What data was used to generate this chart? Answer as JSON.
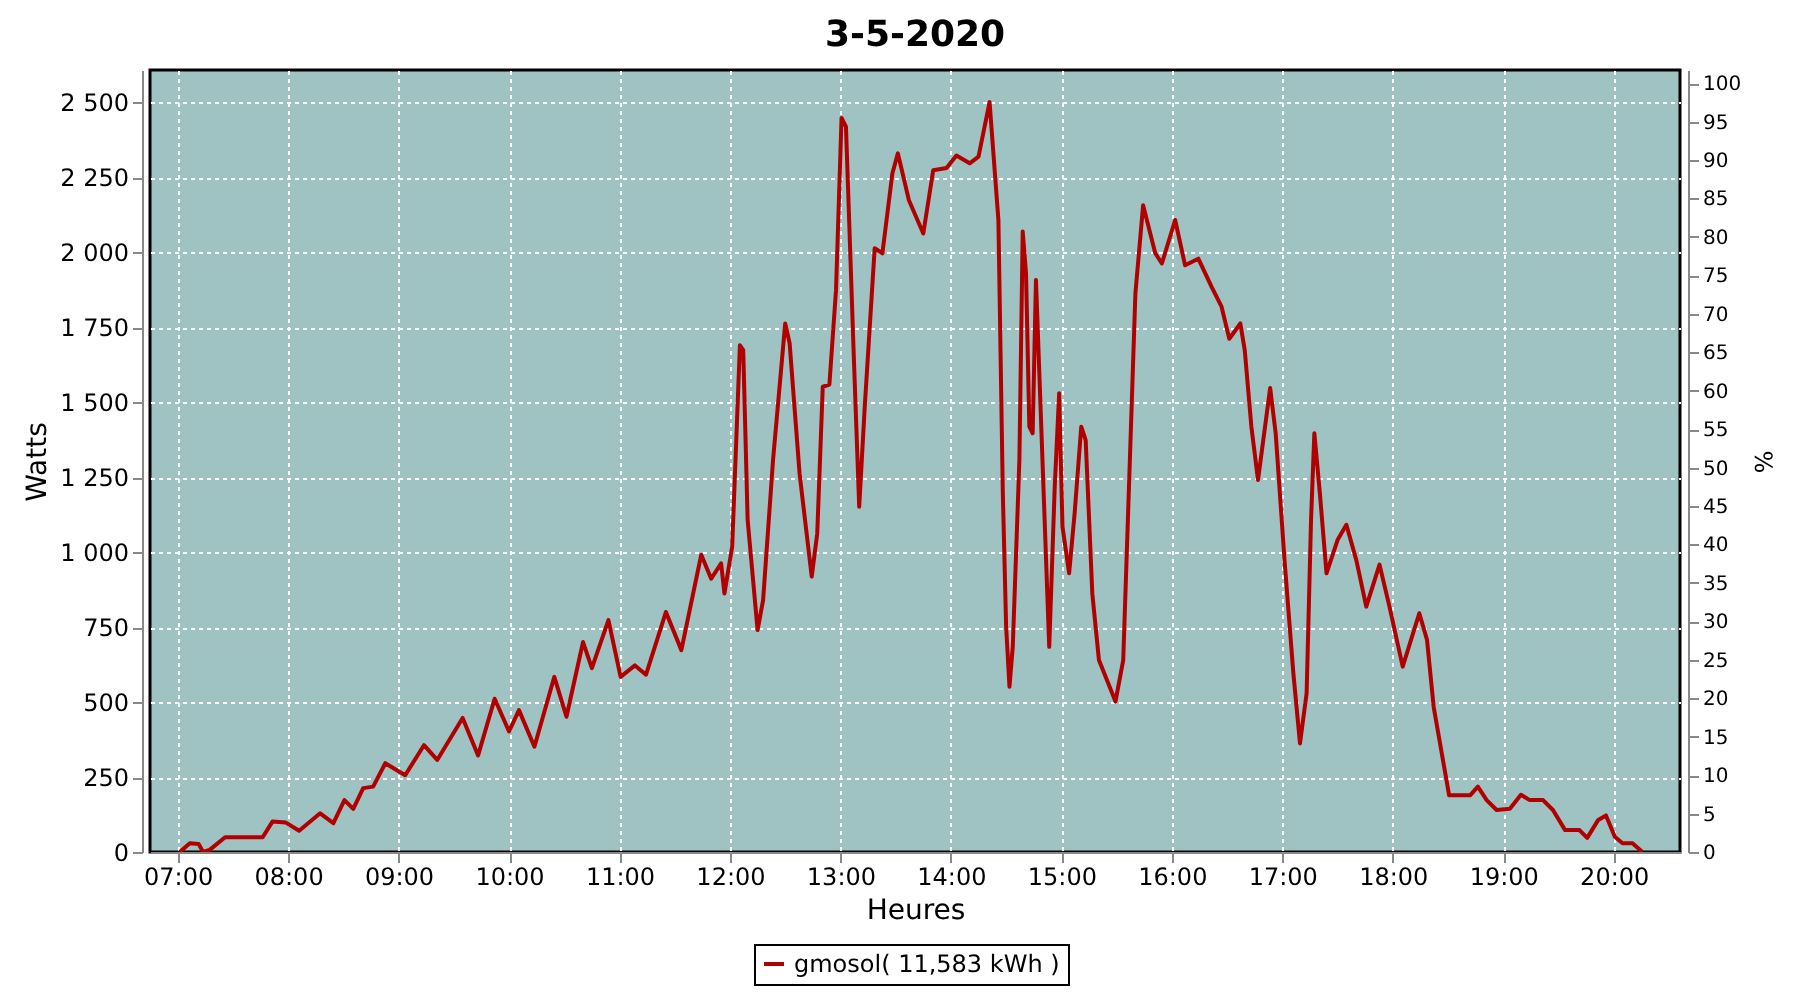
{
  "chart_data": {
    "type": "line",
    "title": "3-5-2020",
    "xlabel": "Heures",
    "ylabel": "Watts",
    "y2label": "%",
    "x": [
      7.02,
      7.11,
      7.19,
      7.23,
      7.29,
      7.43,
      7.77,
      7.86,
      7.98,
      8.1,
      8.29,
      8.41,
      8.51,
      8.59,
      8.68,
      8.77,
      8.88,
      9.06,
      9.23,
      9.35,
      9.58,
      9.72,
      9.87,
      10.0,
      10.09,
      10.23,
      10.41,
      10.52,
      10.67,
      10.75,
      10.9,
      11.01,
      11.14,
      11.24,
      11.42,
      11.56,
      11.74,
      11.83,
      11.92,
      11.95,
      12.02,
      12.09,
      12.12,
      12.16,
      12.25,
      12.3,
      12.39,
      12.5,
      12.54,
      12.63,
      12.74,
      12.79,
      12.84,
      12.9,
      12.96,
      13.01,
      13.05,
      13.12,
      13.17,
      13.22,
      13.31,
      13.38,
      13.47,
      13.52,
      13.62,
      13.75,
      13.84,
      13.96,
      14.05,
      14.17,
      14.25,
      14.35,
      14.43,
      14.47,
      14.5,
      14.53,
      14.56,
      14.62,
      14.65,
      14.68,
      14.71,
      14.74,
      14.77,
      14.89,
      14.94,
      14.98,
      15.01,
      15.07,
      15.12,
      15.18,
      15.22,
      15.28,
      15.34,
      15.49,
      15.56,
      15.67,
      15.74,
      15.85,
      15.91,
      16.03,
      16.12,
      16.24,
      16.36,
      16.45,
      16.52,
      16.62,
      16.66,
      16.72,
      16.78,
      16.89,
      16.94,
      17.02,
      17.1,
      17.16,
      17.22,
      17.26,
      17.29,
      17.34,
      17.4,
      17.5,
      17.58,
      17.67,
      17.76,
      17.88,
      17.97,
      18.09,
      18.24,
      18.31,
      18.37,
      18.51,
      18.7,
      18.77,
      18.85,
      18.94,
      19.06,
      19.16,
      19.24,
      19.36,
      19.45,
      19.56,
      19.69,
      19.76,
      19.86,
      19.93,
      20.01,
      20.08,
      20.17,
      20.26
    ],
    "series": [
      {
        "name": "gmosol( 11,583 kWh )",
        "color": "#b00000",
        "values": [
          0,
          29,
          27,
          0,
          7,
          49,
          49,
          102,
          98,
          71,
          129,
          96,
          173,
          144,
          213,
          218,
          296,
          256,
          356,
          307,
          447,
          322,
          511,
          402,
          473,
          351,
          584,
          451,
          700,
          613,
          773,
          584,
          622,
          591,
          800,
          673,
          991,
          911,
          962,
          862,
          1018,
          1689,
          1673,
          1107,
          740,
          840,
          1307,
          1762,
          1696,
          1262,
          918,
          1062,
          1551,
          1558,
          1873,
          2447,
          2418,
          1662,
          1151,
          1484,
          2013,
          1996,
          2262,
          2329,
          2173,
          2062,
          2273,
          2280,
          2322,
          2296,
          2318,
          2500,
          2107,
          1196,
          751,
          551,
          684,
          1307,
          2069,
          1929,
          1418,
          1396,
          1907,
          684,
          1218,
          1529,
          1085,
          929,
          1129,
          1418,
          1373,
          862,
          640,
          502,
          640,
          1862,
          2156,
          1996,
          1962,
          2107,
          1956,
          1978,
          1884,
          1818,
          1711,
          1762,
          1673,
          1418,
          1240,
          1547,
          1396,
          973,
          596,
          362,
          529,
          1107,
          1396,
          1196,
          929,
          1040,
          1091,
          973,
          818,
          958,
          818,
          618,
          796,
          707,
          484,
          189,
          189,
          218,
          173,
          140,
          144,
          191,
          173,
          173,
          140,
          73,
          73,
          47,
          107,
          122,
          51,
          29,
          29,
          0
        ]
      }
    ],
    "xlim": [
      6.75,
      20.6
    ],
    "xticks": [
      {
        "value": 7,
        "label": "07:00"
      },
      {
        "value": 8,
        "label": "08:00"
      },
      {
        "value": 9,
        "label": "09:00"
      },
      {
        "value": 10,
        "label": "10:00"
      },
      {
        "value": 11,
        "label": "11:00"
      },
      {
        "value": 12,
        "label": "12:00"
      },
      {
        "value": 13,
        "label": "13:00"
      },
      {
        "value": 14,
        "label": "14:00"
      },
      {
        "value": 15,
        "label": "15:00"
      },
      {
        "value": 16,
        "label": "16:00"
      },
      {
        "value": 17,
        "label": "17:00"
      },
      {
        "value": 18,
        "label": "18:00"
      },
      {
        "value": 19,
        "label": "19:00"
      },
      {
        "value": 20,
        "label": "20:00"
      }
    ],
    "ylim": [
      0,
      2607
    ],
    "yticks": [
      0,
      250,
      500,
      750,
      {
        "value": 1000,
        "label": "1 000"
      },
      {
        "value": 1250,
        "label": "1 250"
      },
      {
        "value": 1500,
        "label": "1 500"
      },
      {
        "value": 1750,
        "label": "1 750"
      },
      {
        "value": 2000,
        "label": "2 000"
      },
      {
        "value": 2250,
        "label": "2 250"
      },
      {
        "value": 2500,
        "label": "2 500"
      }
    ],
    "y2lim": [
      0,
      101.7
    ],
    "y2ticks": [
      0,
      5,
      10,
      15,
      20,
      25,
      30,
      35,
      40,
      45,
      50,
      55,
      60,
      65,
      70,
      75,
      80,
      85,
      90,
      95,
      100
    ],
    "grid": true,
    "legend": "bottom",
    "marker": "none",
    "line_style": "solid"
  }
}
